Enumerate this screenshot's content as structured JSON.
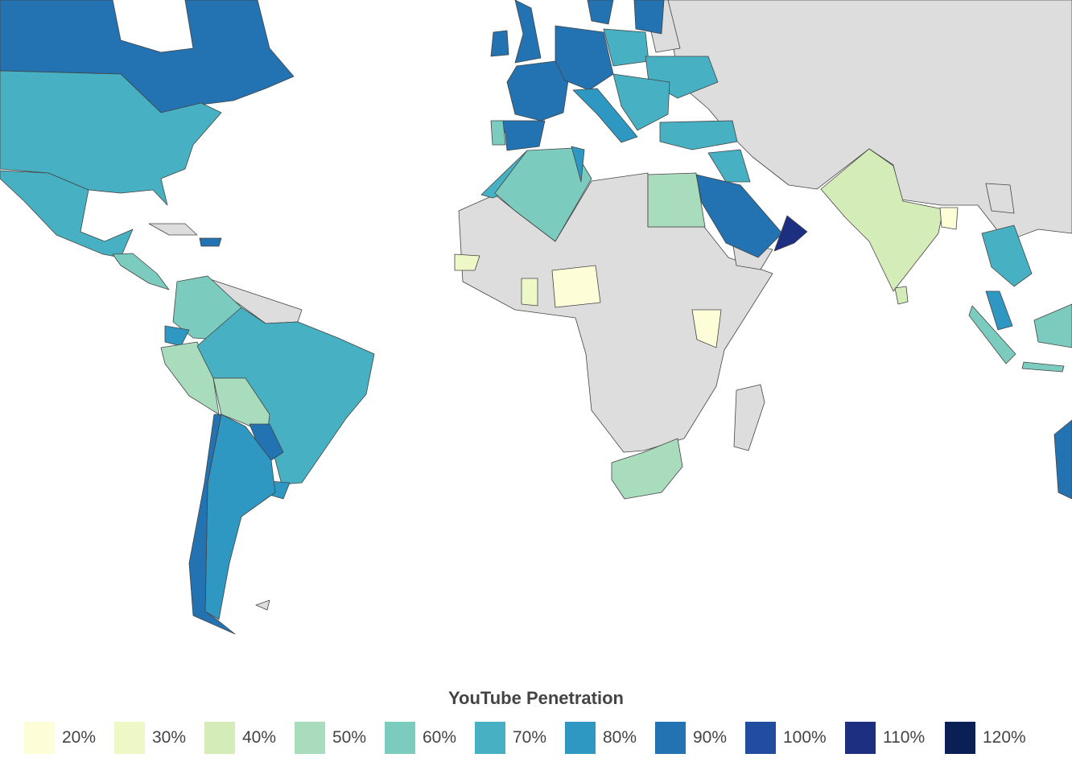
{
  "legend": {
    "title": "YouTube Penetration",
    "items": [
      {
        "label": "20%",
        "value": 20,
        "color": "#fdfed8"
      },
      {
        "label": "30%",
        "value": 30,
        "color": "#eef8c6"
      },
      {
        "label": "40%",
        "value": 40,
        "color": "#d4edb8"
      },
      {
        "label": "50%",
        "value": 50,
        "color": "#a8dcbc"
      },
      {
        "label": "60%",
        "value": 60,
        "color": "#7ccbbf"
      },
      {
        "label": "70%",
        "value": 70,
        "color": "#47b1c3"
      },
      {
        "label": "80%",
        "value": 80,
        "color": "#2e97c2"
      },
      {
        "label": "90%",
        "value": 90,
        "color": "#2372b1"
      },
      {
        "label": "100%",
        "value": 100,
        "color": "#214c9f"
      },
      {
        "label": "110%",
        "value": 110,
        "color": "#1c2f80"
      },
      {
        "label": "120%",
        "value": 120,
        "color": "#0b1f57"
      }
    ],
    "no_data_color": "#dddddd"
  },
  "chart_data": {
    "type": "choropleth",
    "title": "YouTube Penetration",
    "regions": [
      {
        "id": "canada",
        "value": 90
      },
      {
        "id": "usa",
        "value": 70
      },
      {
        "id": "mexico",
        "value": 70
      },
      {
        "id": "central-america",
        "value": 60
      },
      {
        "id": "hispaniola",
        "value": 90
      },
      {
        "id": "colombia-venezuela",
        "value": 60
      },
      {
        "id": "ecuador",
        "value": 80
      },
      {
        "id": "peru",
        "value": 50
      },
      {
        "id": "brazil",
        "value": 70
      },
      {
        "id": "bolivia",
        "value": 50
      },
      {
        "id": "paraguay",
        "value": 90
      },
      {
        "id": "uruguay",
        "value": 80
      },
      {
        "id": "argentina",
        "value": 80
      },
      {
        "id": "chile",
        "value": 90
      },
      {
        "id": "uk",
        "value": 90
      },
      {
        "id": "ireland",
        "value": 90
      },
      {
        "id": "france",
        "value": 90
      },
      {
        "id": "spain",
        "value": 90
      },
      {
        "id": "portugal",
        "value": 60
      },
      {
        "id": "central-europe",
        "value": 90
      },
      {
        "id": "italy",
        "value": 80
      },
      {
        "id": "poland",
        "value": 70
      },
      {
        "id": "ukraine",
        "value": 70
      },
      {
        "id": "balkans",
        "value": 70
      },
      {
        "id": "turkey",
        "value": 70
      },
      {
        "id": "scandinavia",
        "value": 90
      },
      {
        "id": "baltics",
        "value": 90
      },
      {
        "id": "morocco",
        "value": 70
      },
      {
        "id": "algeria",
        "value": 60
      },
      {
        "id": "tunisia",
        "value": 80
      },
      {
        "id": "egypt",
        "value": 50
      },
      {
        "id": "saudi-arabia",
        "value": 90
      },
      {
        "id": "oman",
        "value": 110
      },
      {
        "id": "iraq",
        "value": 70
      },
      {
        "id": "india",
        "value": 40
      },
      {
        "id": "bangladesh",
        "value": 20
      },
      {
        "id": "southeast-asia",
        "value": 70
      },
      {
        "id": "malaysia",
        "value": 80
      },
      {
        "id": "indonesia",
        "value": 60
      },
      {
        "id": "kenya",
        "value": 20
      },
      {
        "id": "nigeria",
        "value": 20
      },
      {
        "id": "ghana",
        "value": 30
      },
      {
        "id": "senegal",
        "value": 30
      },
      {
        "id": "south-africa",
        "value": 50
      },
      {
        "id": "australia",
        "value": 90
      }
    ]
  }
}
